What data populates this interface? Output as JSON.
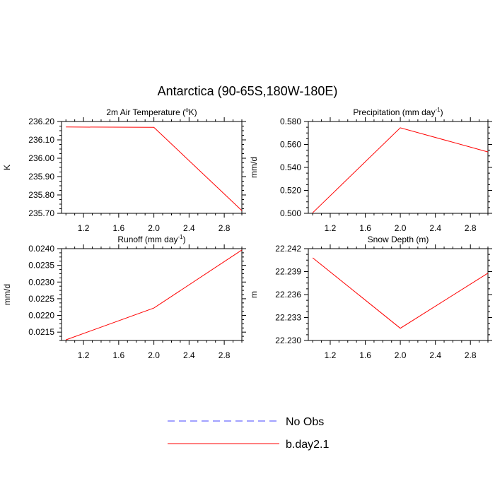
{
  "figure_title": "Antarctica (90-65S,180W-180E)",
  "legend": {
    "entries": [
      {
        "label": "No Obs",
        "color": "#4444ff",
        "style": "dashed"
      },
      {
        "label": "b.day2.1",
        "color": "#ff0000",
        "style": "solid"
      }
    ]
  },
  "chart_data": [
    {
      "type": "line",
      "title": "2m Air Temperature (°K)",
      "title_parts": [
        "2m Air Temperature (",
        "o",
        "K)"
      ],
      "ylabel": "K",
      "xlim": [
        0.95,
        3.0
      ],
      "ylim": [
        235.7,
        236.2
      ],
      "xticks": [
        "1.2",
        "1.6",
        "2.0",
        "2.4",
        "2.8"
      ],
      "yticks": [
        "235.70",
        "235.80",
        "235.90",
        "236.00",
        "236.10",
        "236.20"
      ],
      "series": [
        {
          "name": "b.day2.1",
          "color": "#ff0000",
          "x": [
            1,
            2,
            3
          ],
          "y": [
            236.17,
            236.168,
            235.715
          ]
        }
      ]
    },
    {
      "type": "line",
      "title": "Precipitation (mm day-1)",
      "title_parts": [
        "Precipitation (mm day",
        "-1",
        ")"
      ],
      "ylabel": "mm/d",
      "xlim": [
        0.95,
        3.0
      ],
      "ylim": [
        0.5,
        0.58
      ],
      "xticks": [
        "1.2",
        "1.6",
        "2.0",
        "2.4",
        "2.8"
      ],
      "yticks": [
        "0.500",
        "0.520",
        "0.540",
        "0.560",
        "0.580"
      ],
      "series": [
        {
          "name": "b.day2.1",
          "color": "#ff0000",
          "x": [
            1,
            2,
            3
          ],
          "y": [
            0.5005,
            0.5745,
            0.5535
          ]
        }
      ]
    },
    {
      "type": "line",
      "title": "Runoff (mm day-1)",
      "title_parts": [
        "Runoff (mm day",
        "-1",
        ")"
      ],
      "ylabel": "mm/d",
      "xlim": [
        0.95,
        3.0
      ],
      "ylim": [
        0.02125,
        0.024
      ],
      "xticks": [
        "1.2",
        "1.6",
        "2.0",
        "2.4",
        "2.8"
      ],
      "yticks": [
        "0.0215",
        "0.0220",
        "0.0225",
        "0.0230",
        "0.0235",
        "0.0240"
      ],
      "series": [
        {
          "name": "b.day2.1",
          "color": "#ff0000",
          "x": [
            1,
            2,
            3
          ],
          "y": [
            0.02127,
            0.02222,
            0.02396
          ]
        }
      ]
    },
    {
      "type": "line",
      "title": "Snow Depth (m)",
      "title_parts": [
        "Snow Depth (m)",
        "",
        ""
      ],
      "ylabel": "m",
      "xlim": [
        0.95,
        3.0
      ],
      "ylim": [
        22.23,
        22.242
      ],
      "xticks": [
        "1.2",
        "1.6",
        "2.0",
        "2.4",
        "2.8"
      ],
      "yticks": [
        "22.230",
        "22.233",
        "22.236",
        "22.239",
        "22.242"
      ],
      "series": [
        {
          "name": "b.day2.1",
          "color": "#ff0000",
          "x": [
            1,
            2,
            3
          ],
          "y": [
            22.2408,
            22.2316,
            22.2388
          ]
        }
      ]
    }
  ]
}
